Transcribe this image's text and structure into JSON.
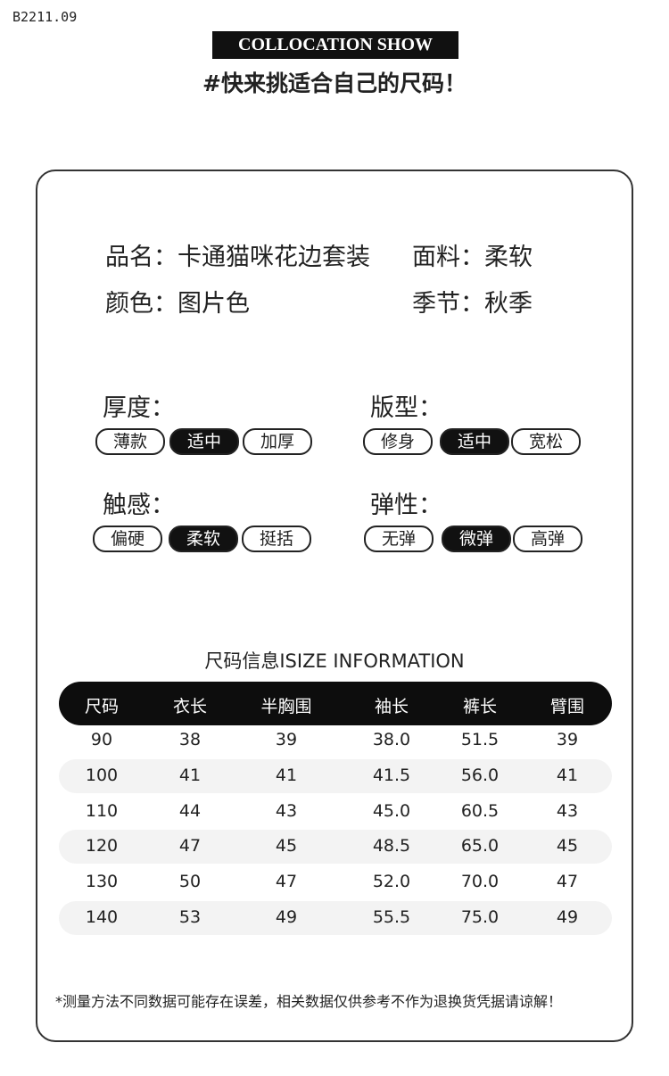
{
  "code": "B2211.09",
  "banner": "COLLOCATION SHOW",
  "subtitle": "#快来挑适合自己的尺码！",
  "info": [
    "品名：卡通猫咪花边套装",
    "面料：柔软",
    "颜色：图片色",
    "季节：秋季"
  ],
  "attributes": [
    {
      "label": "厚度：",
      "options": [
        "薄款",
        "适中",
        "加厚"
      ],
      "selected": 1
    },
    {
      "label": "版型：",
      "options": [
        "修身",
        "适中",
        "宽松"
      ],
      "selected": 1
    },
    {
      "label": "触感：",
      "options": [
        "偏硬",
        "柔软",
        "挺括"
      ],
      "selected": 1
    },
    {
      "label": "弹性：",
      "options": [
        "无弹",
        "微弹",
        "高弹"
      ],
      "selected": 1
    }
  ],
  "table": {
    "title": "尺码信息ISIZE INFORMATION",
    "header": [
      "尺码",
      "衣长",
      "半胸围",
      "袖长",
      "裤长",
      "臂围"
    ],
    "rows": [
      [
        "90",
        "38",
        "39",
        "38.0",
        "51.5",
        "39"
      ],
      [
        "100",
        "41",
        "41",
        "41.5",
        "56.0",
        "41"
      ],
      [
        "110",
        "44",
        "43",
        "45.0",
        "60.5",
        "43"
      ],
      [
        "120",
        "47",
        "45",
        "48.5",
        "65.0",
        "45"
      ],
      [
        "130",
        "50",
        "47",
        "52.0",
        "70.0",
        "47"
      ],
      [
        "140",
        "53",
        "49",
        "55.5",
        "75.0",
        "49"
      ]
    ]
  },
  "note": "*测量方法不同数据可能存在误差，相关数据仅供参考不作为退换货凭据请谅解！"
}
